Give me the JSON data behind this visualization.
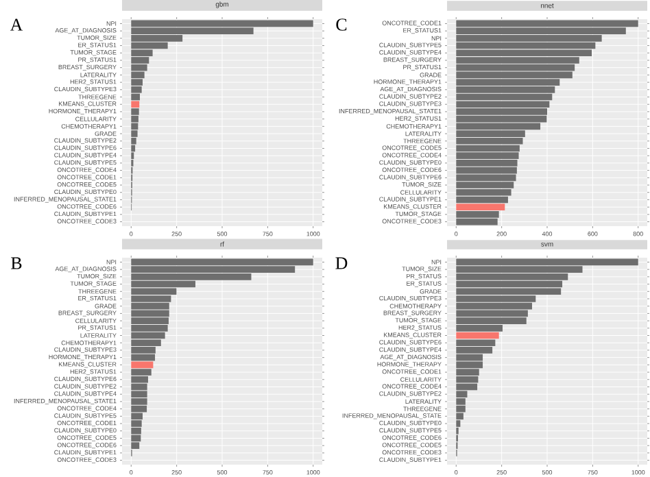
{
  "chart_data": [
    {
      "type": "bar",
      "orientation": "horizontal",
      "title": "gbm",
      "annotations": [
        "A"
      ],
      "grid": true,
      "xlim": [
        -50,
        1050
      ],
      "xticks": [
        0,
        250,
        500,
        750,
        1000
      ],
      "categories": [
        "NPI",
        "AGE_AT_DIAGNOSIS",
        "TUMOR_SIZE",
        "ER_STATUS1",
        "TUMOR_STAGE",
        "PR_STATUS1",
        "BREAST_SURGERY",
        "LATERALITY",
        "HER2_STATUS1",
        "CLAUDIN_SUBTYPE3",
        "THREEGENE",
        "KMEANS_CLUSTER",
        "HORMONE_THERAPY1",
        "CELLULARITY",
        "CHEMOTHERAPY1",
        "GRADE",
        "CLAUDIN_SUBTYPE2",
        "CLAUDIN_SUBTYPE6",
        "CLAUDIN_SUBTYPE4",
        "CLAUDIN_SUBTYPE5",
        "ONCOTREE_CODE4",
        "ONCOTREE_CODE1",
        "ONCOTREE_CODE5",
        "CLAUDIN_SUBTYPE0",
        "INFERRED_MENOPAUSAL_STATE1",
        "ONCOTREE_CODE6",
        "CLAUDIN_SUBTYPE1",
        "ONCOTREE_CODE3"
      ],
      "values": [
        1000,
        672,
        282,
        201,
        118,
        98,
        88,
        73,
        63,
        58,
        48,
        45,
        43,
        40,
        38,
        35,
        28,
        22,
        15,
        12,
        8,
        7,
        6,
        5,
        4,
        3,
        0,
        0
      ],
      "colors": [
        "#6e6e6e",
        "#6e6e6e",
        "#6e6e6e",
        "#6e6e6e",
        "#6e6e6e",
        "#6e6e6e",
        "#6e6e6e",
        "#6e6e6e",
        "#6e6e6e",
        "#6e6e6e",
        "#6e6e6e",
        "#f8766d",
        "#6e6e6e",
        "#6e6e6e",
        "#6e6e6e",
        "#6e6e6e",
        "#6e6e6e",
        "#6e6e6e",
        "#6e6e6e",
        "#6e6e6e",
        "#6e6e6e",
        "#6e6e6e",
        "#6e6e6e",
        "#6e6e6e",
        "#6e6e6e",
        "#6e6e6e",
        "#6e6e6e",
        "#6e6e6e"
      ]
    },
    {
      "type": "bar",
      "orientation": "horizontal",
      "title": "nnet",
      "annotations": [
        "C"
      ],
      "grid": true,
      "xlim": [
        -40,
        840
      ],
      "xticks": [
        0,
        200,
        400,
        600,
        800
      ],
      "categories": [
        "ONCOTREE_CODE1",
        "ER_STATUS1",
        "NPI",
        "CLAUDIN_SUBTYPE5",
        "CLAUDIN_SUBTYPE4",
        "BREAST_SURGERY",
        "PR_STATUS1",
        "GRADE",
        "HORMONE_THERAPY1",
        "AGE_AT_DIAGNOSIS",
        "CLAUDIN_SUBTYPE2",
        "CLAUDIN_SUBTYPE3",
        "INFERRED_MENOPAUSAL_STATE1",
        "HER2_STATUS1",
        "CHEMOTHERAPY1",
        "LATERALITY",
        "THREEGENE",
        "ONCOTREE_CODE5",
        "ONCOTREE_CODE4",
        "CLAUDIN_SUBTYPE0",
        "ONCOTREE_CODE6",
        "CLAUDIN_SUBTYPE6",
        "TUMOR_SIZE",
        "CELLULARITY",
        "CLAUDIN_SUBTYPE1",
        "KMEANS_CLUSTER",
        "TUMOR_STAGE",
        "ONCOTREE_CODE3"
      ],
      "values": [
        800,
        746,
        640,
        612,
        596,
        541,
        521,
        511,
        455,
        434,
        422,
        410,
        400,
        398,
        370,
        303,
        293,
        279,
        275,
        269,
        267,
        263,
        253,
        242,
        228,
        214,
        188,
        182
      ],
      "colors": [
        "#6e6e6e",
        "#6e6e6e",
        "#6e6e6e",
        "#6e6e6e",
        "#6e6e6e",
        "#6e6e6e",
        "#6e6e6e",
        "#6e6e6e",
        "#6e6e6e",
        "#6e6e6e",
        "#6e6e6e",
        "#6e6e6e",
        "#6e6e6e",
        "#6e6e6e",
        "#6e6e6e",
        "#6e6e6e",
        "#6e6e6e",
        "#6e6e6e",
        "#6e6e6e",
        "#6e6e6e",
        "#6e6e6e",
        "#6e6e6e",
        "#6e6e6e",
        "#6e6e6e",
        "#6e6e6e",
        "#f8766d",
        "#6e6e6e",
        "#6e6e6e"
      ]
    },
    {
      "type": "bar",
      "orientation": "horizontal",
      "title": "rf",
      "annotations": [
        "B"
      ],
      "grid": true,
      "xlim": [
        -50,
        1050
      ],
      "xticks": [
        0,
        250,
        500,
        750,
        1000
      ],
      "categories": [
        "NPI",
        "AGE_AT_DIAGNOSIS",
        "TUMOR_SIZE",
        "TUMOR_STAGE",
        "THREEGENE",
        "ER_STATUS1",
        "GRADE",
        "BREAST_SURGERY",
        "CELLULARITY",
        "PR_STATUS1",
        "LATERALITY",
        "CHEMOTHERAPY1",
        "CLAUDIN_SUBTYPE3",
        "HORMONE_THERAPY1",
        "KMEANS_CLUSTER",
        "HER2_STATUS1",
        "CLAUDIN_SUBTYPE6",
        "CLAUDIN_SUBTYPE2",
        "CLAUDIN_SUBTYPE4",
        "INFERRED_MENOPAUSAL_STATE1",
        "ONCOTREE_CODE4",
        "CLAUDIN_SUBTYPE5",
        "ONCOTREE_CODE1",
        "CLAUDIN_SUBTYPE0",
        "ONCOTREE_CODE5",
        "ONCOTREE_CODE6",
        "CLAUDIN_SUBTYPE1",
        "ONCOTREE_CODE3"
      ],
      "values": [
        1000,
        900,
        660,
        353,
        249,
        219,
        209,
        209,
        206,
        201,
        186,
        164,
        134,
        131,
        121,
        111,
        93,
        88,
        88,
        88,
        86,
        63,
        58,
        55,
        53,
        45,
        5,
        0
      ],
      "colors": [
        "#6e6e6e",
        "#6e6e6e",
        "#6e6e6e",
        "#6e6e6e",
        "#6e6e6e",
        "#6e6e6e",
        "#6e6e6e",
        "#6e6e6e",
        "#6e6e6e",
        "#6e6e6e",
        "#6e6e6e",
        "#6e6e6e",
        "#6e6e6e",
        "#6e6e6e",
        "#f8766d",
        "#6e6e6e",
        "#6e6e6e",
        "#6e6e6e",
        "#6e6e6e",
        "#6e6e6e",
        "#6e6e6e",
        "#6e6e6e",
        "#6e6e6e",
        "#6e6e6e",
        "#6e6e6e",
        "#6e6e6e",
        "#6e6e6e",
        "#6e6e6e"
      ]
    },
    {
      "type": "bar",
      "orientation": "horizontal",
      "title": "svm",
      "annotations": [
        "D"
      ],
      "grid": true,
      "xlim": [
        -50,
        1050
      ],
      "xticks": [
        0,
        250,
        500,
        750,
        1000
      ],
      "categories": [
        "NPI",
        "TUMOR_SIZE",
        "PR_STATUS",
        "ER_STATUS",
        "GRADE",
        "CLAUDIN_SUBTYPE3",
        "CHEMOTHERAPY",
        "BREAST_SURGERY",
        "TUMOR_STAGE",
        "HER2_STATUS",
        "KMEANS_CLUSTER",
        "CLAUDIN_SUBTYPE6",
        "CLAUDIN_SUBTYPE4",
        "AGE_AT_DIAGNOSIS",
        "HORMONE_THERAPY",
        "ONCOTREE_CODE1",
        "CELLULARITY",
        "ONCOTREE_CODE4",
        "CLAUDIN_SUBTYPE2",
        "LATERALITY",
        "THREEGENE",
        "INFERRED_MENOPAUSAL_STATE",
        "CLAUDIN_SUBTYPE0",
        "CLAUDIN_SUBTYPE5",
        "ONCOTREE_CODE6",
        "ONCOTREE_CODE5",
        "ONCOTREE_CODE3",
        "CLAUDIN_SUBTYPE1"
      ],
      "values": [
        1000,
        694,
        614,
        583,
        576,
        437,
        417,
        394,
        386,
        255,
        235,
        215,
        199,
        146,
        146,
        126,
        121,
        116,
        61,
        51,
        51,
        40,
        23,
        13,
        10,
        8,
        5,
        0
      ],
      "colors": [
        "#6e6e6e",
        "#6e6e6e",
        "#6e6e6e",
        "#6e6e6e",
        "#6e6e6e",
        "#6e6e6e",
        "#6e6e6e",
        "#6e6e6e",
        "#6e6e6e",
        "#6e6e6e",
        "#f8766d",
        "#6e6e6e",
        "#6e6e6e",
        "#6e6e6e",
        "#6e6e6e",
        "#6e6e6e",
        "#6e6e6e",
        "#6e6e6e",
        "#6e6e6e",
        "#6e6e6e",
        "#6e6e6e",
        "#6e6e6e",
        "#6e6e6e",
        "#6e6e6e",
        "#6e6e6e",
        "#6e6e6e",
        "#6e6e6e",
        "#6e6e6e"
      ]
    }
  ]
}
